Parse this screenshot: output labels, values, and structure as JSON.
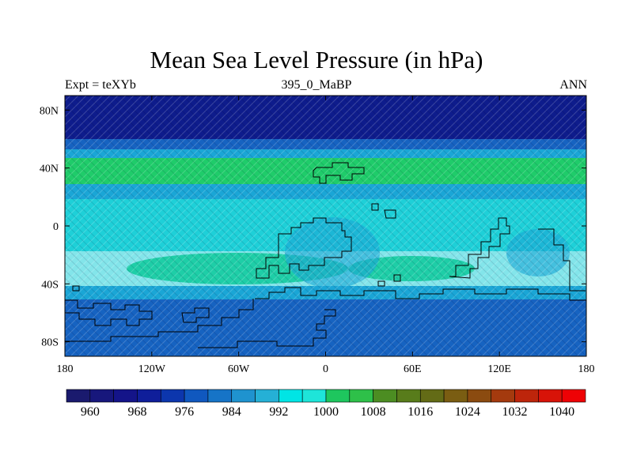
{
  "title": "Mean Sea Level Pressure (in hPa)",
  "subtitle_left": "Expt = teXYb",
  "subtitle_center": "395_0_MaBP",
  "subtitle_right": "ANN",
  "map": {
    "type": "filled-contour",
    "variable": "mean sea level pressure",
    "units": "hPa",
    "lon_ticks": [
      "180",
      "120W",
      "60W",
      "0",
      "60E",
      "120E",
      "180"
    ],
    "lon_tick_values": [
      -180,
      -120,
      -60,
      0,
      60,
      120,
      180
    ],
    "lat_ticks": [
      "80N",
      "40N",
      "0",
      "40S",
      "80S"
    ],
    "lat_tick_values": [
      80,
      40,
      0,
      -40,
      -80
    ],
    "lat_range": [
      -90,
      90
    ],
    "lon_range": [
      -180,
      180
    ],
    "zonal_bands": [
      {
        "lat_range": [
          55,
          90
        ],
        "level": "≤960"
      },
      {
        "lat_range": [
          47,
          55
        ],
        "level": "984–992"
      },
      {
        "lat_range": [
          42,
          47
        ],
        "level": "992–1000"
      },
      {
        "lat_range": [
          25,
          42
        ],
        "level": "1000–1008"
      },
      {
        "lat_range": [
          15,
          25
        ],
        "level": "992–1000"
      },
      {
        "lat_range": [
          -10,
          15
        ],
        "level": "992–1000"
      },
      {
        "lat_range": [
          -20,
          -10
        ],
        "level": "992–1000"
      },
      {
        "lat_range": [
          -45,
          -20
        ],
        "level": "1000–1008"
      },
      {
        "lat_range": [
          -55,
          -45
        ],
        "level": "984–992"
      },
      {
        "lat_range": [
          -90,
          -55
        ],
        "level": "984–992"
      }
    ]
  },
  "colorbar": {
    "colors": [
      "#1a1a6e",
      "#17177c",
      "#141489",
      "#0f1e9a",
      "#0c36ad",
      "#1058bf",
      "#1674c7",
      "#1f93cf",
      "#25b0d6",
      "#00e5e5",
      "#1ee5d9",
      "#1ec65e",
      "#2ec049",
      "#4c8d22",
      "#587c1b",
      "#636b16",
      "#7a5d12",
      "#8b4b10",
      "#a43a0e",
      "#bd250b",
      "#d81308",
      "#ee0205"
    ],
    "labels": [
      "960",
      "968",
      "976",
      "984",
      "992",
      "1000",
      "1008",
      "1016",
      "1024",
      "1032",
      "1040"
    ]
  },
  "colors": {
    "polar_low": "#0e1c8c",
    "subpolar": "#1663c1",
    "mid": "#1aa6d6",
    "subtropical_high": "#1fcc6a",
    "tropics": "#1ed0d8",
    "coast_outline": "#000000"
  }
}
